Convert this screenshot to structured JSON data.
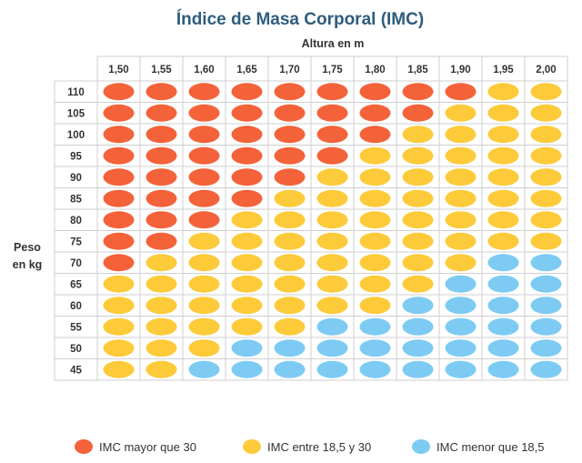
{
  "chart_data": {
    "type": "heatmap",
    "title": "Índice de Masa Corporal (IMC)",
    "xlabel": "Altura en m",
    "ylabel_lines": [
      "Peso",
      "en kg"
    ],
    "x": [
      "1,50",
      "1,55",
      "1,60",
      "1,65",
      "1,70",
      "1,75",
      "1,80",
      "1,85",
      "1,90",
      "1,95",
      "2,00"
    ],
    "y": [
      "110",
      "105",
      "100",
      "95",
      "90",
      "85",
      "80",
      "75",
      "70",
      "65",
      "60",
      "55",
      "50",
      "45"
    ],
    "categories": [
      {
        "key": "high",
        "label": "IMC mayor que 30",
        "color": "#f4623a"
      },
      {
        "key": "normal",
        "label": "IMC entre 18,5 y 30",
        "color": "#fdca3a"
      },
      {
        "key": "low",
        "label": "IMC menor que 18,5",
        "color": "#7dcbf3"
      }
    ],
    "cells": [
      [
        "high",
        "high",
        "high",
        "high",
        "high",
        "high",
        "high",
        "high",
        "high",
        "normal",
        "normal"
      ],
      [
        "high",
        "high",
        "high",
        "high",
        "high",
        "high",
        "high",
        "high",
        "normal",
        "normal",
        "normal"
      ],
      [
        "high",
        "high",
        "high",
        "high",
        "high",
        "high",
        "high",
        "normal",
        "normal",
        "normal",
        "normal"
      ],
      [
        "high",
        "high",
        "high",
        "high",
        "high",
        "high",
        "normal",
        "normal",
        "normal",
        "normal",
        "normal"
      ],
      [
        "high",
        "high",
        "high",
        "high",
        "high",
        "normal",
        "normal",
        "normal",
        "normal",
        "normal",
        "normal"
      ],
      [
        "high",
        "high",
        "high",
        "high",
        "normal",
        "normal",
        "normal",
        "normal",
        "normal",
        "normal",
        "normal"
      ],
      [
        "high",
        "high",
        "high",
        "normal",
        "normal",
        "normal",
        "normal",
        "normal",
        "normal",
        "normal",
        "normal"
      ],
      [
        "high",
        "high",
        "normal",
        "normal",
        "normal",
        "normal",
        "normal",
        "normal",
        "normal",
        "normal",
        "normal"
      ],
      [
        "high",
        "normal",
        "normal",
        "normal",
        "normal",
        "normal",
        "normal",
        "normal",
        "normal",
        "low",
        "low"
      ],
      [
        "normal",
        "normal",
        "normal",
        "normal",
        "normal",
        "normal",
        "normal",
        "normal",
        "low",
        "low",
        "low"
      ],
      [
        "normal",
        "normal",
        "normal",
        "normal",
        "normal",
        "normal",
        "normal",
        "low",
        "low",
        "low",
        "low"
      ],
      [
        "normal",
        "normal",
        "normal",
        "normal",
        "normal",
        "low",
        "low",
        "low",
        "low",
        "low",
        "low"
      ],
      [
        "normal",
        "normal",
        "normal",
        "low",
        "low",
        "low",
        "low",
        "low",
        "low",
        "low",
        "low"
      ],
      [
        "normal",
        "normal",
        "low",
        "low",
        "low",
        "low",
        "low",
        "low",
        "low",
        "low",
        "low"
      ]
    ],
    "grid": true,
    "legend": "bottom"
  }
}
